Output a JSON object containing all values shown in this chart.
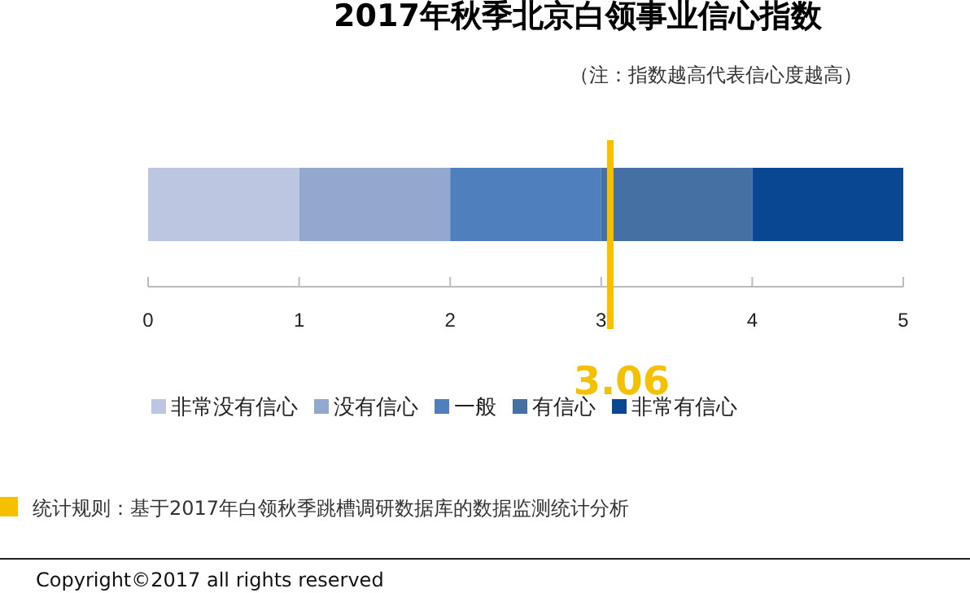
{
  "chart_data": {
    "type": "bar",
    "orientation": "horizontal",
    "stacked": true,
    "title": "2017年秋季北京白领事业信心指数",
    "subtitle": "（注：指数越高代表信心度越高）",
    "categories": [
      null
    ],
    "series": [
      {
        "name": "非常没有信心",
        "color": "#bcc6e0",
        "values": [
          1
        ]
      },
      {
        "name": "没有信心",
        "color": "#93a8cf",
        "values": [
          1
        ]
      },
      {
        "name": "一般",
        "color": "#4f7fbc",
        "values": [
          1
        ]
      },
      {
        "name": "有信心",
        "color": "#4470a4",
        "values": [
          1
        ]
      },
      {
        "name": "非常有信心",
        "color": "#0a4792",
        "values": [
          1
        ]
      }
    ],
    "xlim": [
      0,
      5
    ],
    "xticks": [
      0,
      1,
      2,
      3,
      4,
      5
    ],
    "legend": "bottom",
    "grid": false,
    "ref_lines": [
      {
        "axis": "x",
        "value": 3.06,
        "label": "3.06",
        "color": "#f5c000"
      }
    ],
    "annotations": [
      "统计规则：基于2017年白领秋季跳槽调研数据库的数据监测统计分析",
      "Copyright©2017 all rights reserved"
    ]
  }
}
